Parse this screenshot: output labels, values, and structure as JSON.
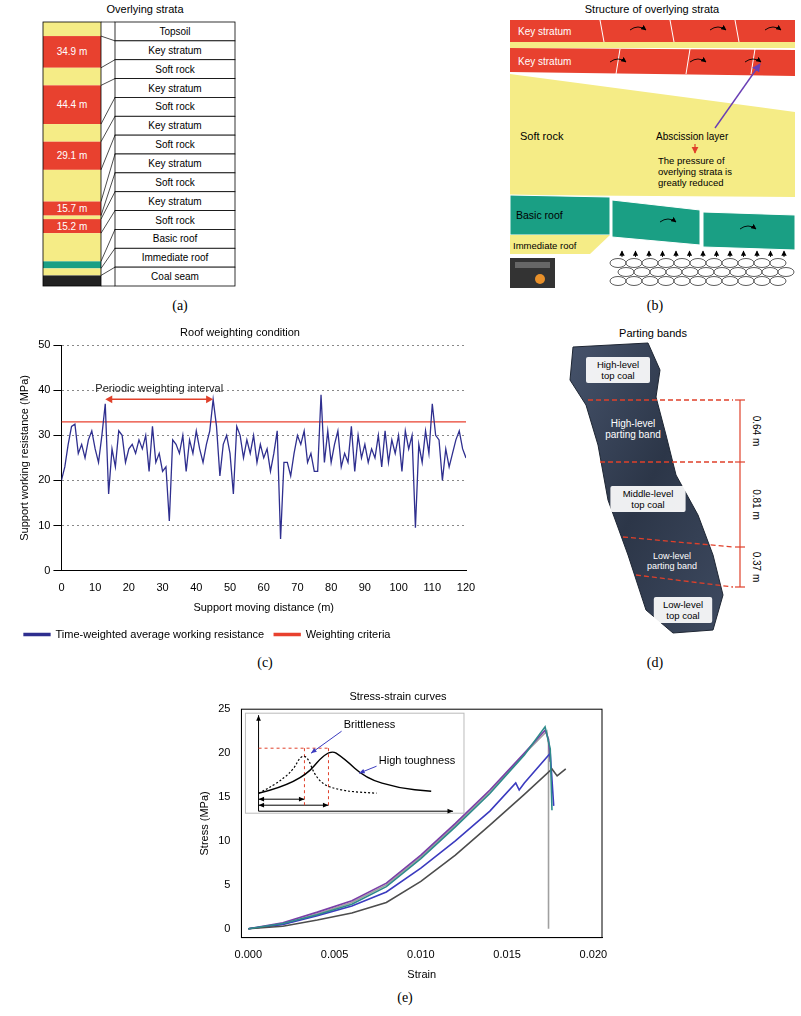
{
  "panels": {
    "a": {
      "letter": "(a)",
      "title": "Overlying strata",
      "layers": [
        {
          "name": "Topsoil",
          "color": "#f5ec86"
        },
        {
          "name": "Key stratum",
          "color": "#e8412f",
          "thickness": "34.9 m"
        },
        {
          "name": "Soft rock",
          "color": "#f5ec86"
        },
        {
          "name": "Key stratum",
          "color": "#e8412f",
          "thickness": "44.4 m"
        },
        {
          "name": "Soft rock",
          "color": "#f5ec86"
        },
        {
          "name": "Key stratum",
          "color": "#e8412f",
          "thickness": "29.1 m"
        },
        {
          "name": "Soft rock",
          "color": "#f5ec86"
        },
        {
          "name": "Key stratum",
          "color": "#e8412f",
          "thickness": "15.7 m"
        },
        {
          "name": "Soft rock",
          "color": "#f5ec86"
        },
        {
          "name": "Key stratum",
          "color": "#e8412f",
          "thickness": "15.2 m"
        },
        {
          "name": "Soft rock",
          "color": "#f5ec86"
        },
        {
          "name": "Basic roof",
          "color": "#1a9f84"
        },
        {
          "name": "Immediate roof",
          "color": "#f5ec86"
        },
        {
          "name": "Coal seam",
          "color": "#222222"
        }
      ]
    },
    "b": {
      "letter": "(b)",
      "title": "Structure of overlying strata",
      "labels": {
        "key_stratum_upper": "Key stratum",
        "key_stratum_lower": "Key stratum",
        "soft_rock": "Soft rock",
        "abscission_layer": "Abscission layer",
        "pressure_note": "The pressure of overlying strata is greatly reduced",
        "basic_roof": "Basic roof",
        "immediate_roof": "Immediate roof"
      }
    },
    "d": {
      "letter": "(d)",
      "title": "Parting bands",
      "labels": {
        "high_top_coal": "High-level top coal",
        "high_parting": "High-level parting band",
        "middle_top_coal": "Middle-level top coal",
        "low_parting": "Low-level parting band",
        "low_top_coal": "Low-level top coal"
      },
      "dimensions": [
        "0.64 m",
        "0.81 m",
        "0.37 m"
      ]
    }
  },
  "chart_data": [
    {
      "letter": "(c)",
      "type": "line",
      "title": "Roof weighting condition",
      "x_label": "Support moving distance (m)",
      "y_label": "Support working resistance (MPa)",
      "x": [
        0,
        1,
        2,
        3,
        4,
        5,
        6,
        7,
        8,
        9,
        10,
        11,
        12,
        13,
        14,
        15,
        16,
        17,
        18,
        19,
        20,
        21,
        22,
        23,
        24,
        25,
        26,
        27,
        28,
        29,
        30,
        31,
        32,
        33,
        34,
        35,
        36,
        37,
        38,
        39,
        40,
        41,
        42,
        43,
        44,
        45,
        46,
        47,
        48,
        49,
        50,
        51,
        52,
        53,
        54,
        55,
        56,
        57,
        58,
        59,
        60,
        61,
        62,
        63,
        64,
        65,
        66,
        67,
        68,
        69,
        70,
        71,
        72,
        73,
        74,
        75,
        76,
        77,
        78,
        79,
        80,
        81,
        82,
        83,
        84,
        85,
        86,
        87,
        88,
        89,
        90,
        91,
        92,
        93,
        94,
        95,
        96,
        97,
        98,
        99,
        100,
        101,
        102,
        103,
        104,
        105,
        106,
        107,
        108,
        109,
        110,
        111,
        112,
        113,
        114,
        115,
        116,
        117,
        118,
        119,
        120
      ],
      "series": [
        {
          "name": "Time-weighted average working resistance",
          "color": "#2f2f8f",
          "values": [
            20,
            23,
            28,
            32,
            32.5,
            26,
            28,
            25,
            29,
            31,
            27,
            24,
            30,
            37,
            17,
            27,
            23,
            31,
            30,
            24,
            27,
            28,
            26,
            29,
            27,
            30,
            22,
            32,
            24,
            26,
            22,
            23,
            11,
            29,
            28,
            26,
            30,
            22,
            29,
            26,
            31,
            27,
            24,
            28,
            31,
            38,
            32,
            21,
            28,
            30,
            26,
            17,
            32,
            30,
            25,
            29,
            26,
            30,
            24,
            28,
            25,
            27,
            22,
            26,
            31,
            7,
            24,
            24,
            21,
            26,
            30,
            28,
            31,
            24,
            26,
            22,
            22,
            39,
            24,
            31,
            24,
            28,
            31,
            23,
            26,
            24,
            32,
            22,
            30,
            25,
            28,
            24,
            27,
            25,
            30,
            23,
            31,
            24,
            29,
            26,
            30,
            22,
            31,
            27,
            30,
            9.5,
            28,
            24,
            31,
            26,
            37,
            30,
            29,
            20,
            27,
            23,
            26,
            29,
            31,
            27,
            25
          ]
        },
        {
          "name": "Weighting criteria",
          "color": "#e8412f",
          "x": [
            0,
            120
          ],
          "values": [
            33,
            33
          ]
        }
      ],
      "xlim": [
        0,
        120
      ],
      "xticks": [
        0,
        10,
        20,
        30,
        40,
        50,
        60,
        70,
        80,
        90,
        100,
        110,
        120
      ],
      "ylim": [
        0,
        50
      ],
      "yticks": [
        0,
        10,
        20,
        30,
        40,
        50
      ],
      "grid": true,
      "legend": "bottom",
      "annotation": {
        "text": "Periodic weighting interval",
        "x": [
          13,
          45
        ],
        "y": 38
      }
    },
    {
      "letter": "(e)",
      "type": "line",
      "title": "Stress-strain curves",
      "x_label": "Strain",
      "y_label": "Stress (MPa)",
      "series": [
        {
          "color": "#2e8b8b",
          "x": [
            0,
            0.002,
            0.004,
            0.006,
            0.008,
            0.01,
            0.012,
            0.014,
            0.016,
            0.0172,
            0.0175,
            0.0176
          ],
          "values": [
            0,
            0.6,
            1.6,
            2.8,
            4.8,
            8,
            11.6,
            15.4,
            19.8,
            23,
            20.5,
            13.5
          ]
        },
        {
          "color": "#4d4d4d",
          "x": [
            0,
            0.002,
            0.004,
            0.006,
            0.008,
            0.01,
            0.012,
            0.014,
            0.016,
            0.0176,
            0.0179,
            0.0184
          ],
          "values": [
            0,
            0.3,
            1,
            1.8,
            3,
            5.4,
            8.4,
            11.8,
            15.3,
            18.2,
            17.4,
            18.2
          ]
        },
        {
          "color": "#3b3bbf",
          "x": [
            0,
            0.002,
            0.004,
            0.006,
            0.008,
            0.01,
            0.012,
            0.014,
            0.0155,
            0.0157,
            0.016,
            0.0175,
            0.0177
          ],
          "values": [
            0,
            0.5,
            1.5,
            2.6,
            4.2,
            6.9,
            10,
            13.4,
            16.6,
            15.8,
            16.6,
            20,
            14
          ]
        },
        {
          "color": "#7b3fa8",
          "x": [
            0,
            0.002,
            0.004,
            0.006,
            0.008,
            0.01,
            0.012,
            0.014,
            0.016,
            0.0172,
            0.0174,
            0.0175
          ],
          "values": [
            0,
            0.7,
            1.9,
            3.2,
            5.2,
            8.4,
            12,
            15.8,
            20,
            22.6,
            21.6,
            19
          ]
        },
        {
          "color": "#a0a0a0",
          "x": [
            0,
            0.002,
            0.004,
            0.006,
            0.008,
            0.01,
            0.012,
            0.014,
            0.016,
            0.0173,
            0.0174,
            0.0174
          ],
          "values": [
            0,
            0.5,
            1.7,
            3,
            5,
            8.2,
            11.8,
            15.6,
            19.9,
            22.5,
            21,
            0
          ]
        }
      ],
      "xlim": [
        -0.0004,
        0.0205
      ],
      "xticks": [
        {
          "value": 0,
          "label": "0.000"
        },
        {
          "value": 0.005,
          "label": "0.005"
        },
        {
          "value": 0.01,
          "label": "0.010"
        },
        {
          "value": 0.015,
          "label": "0.015"
        },
        {
          "value": 0.02,
          "label": "0.020"
        }
      ],
      "ylim": [
        -1,
        25
      ],
      "yticks": [
        0,
        5,
        10,
        15,
        20,
        25
      ],
      "grid": false,
      "inset": {
        "brittle_label": "Brittleness",
        "tough_label": "High toughness"
      }
    }
  ]
}
